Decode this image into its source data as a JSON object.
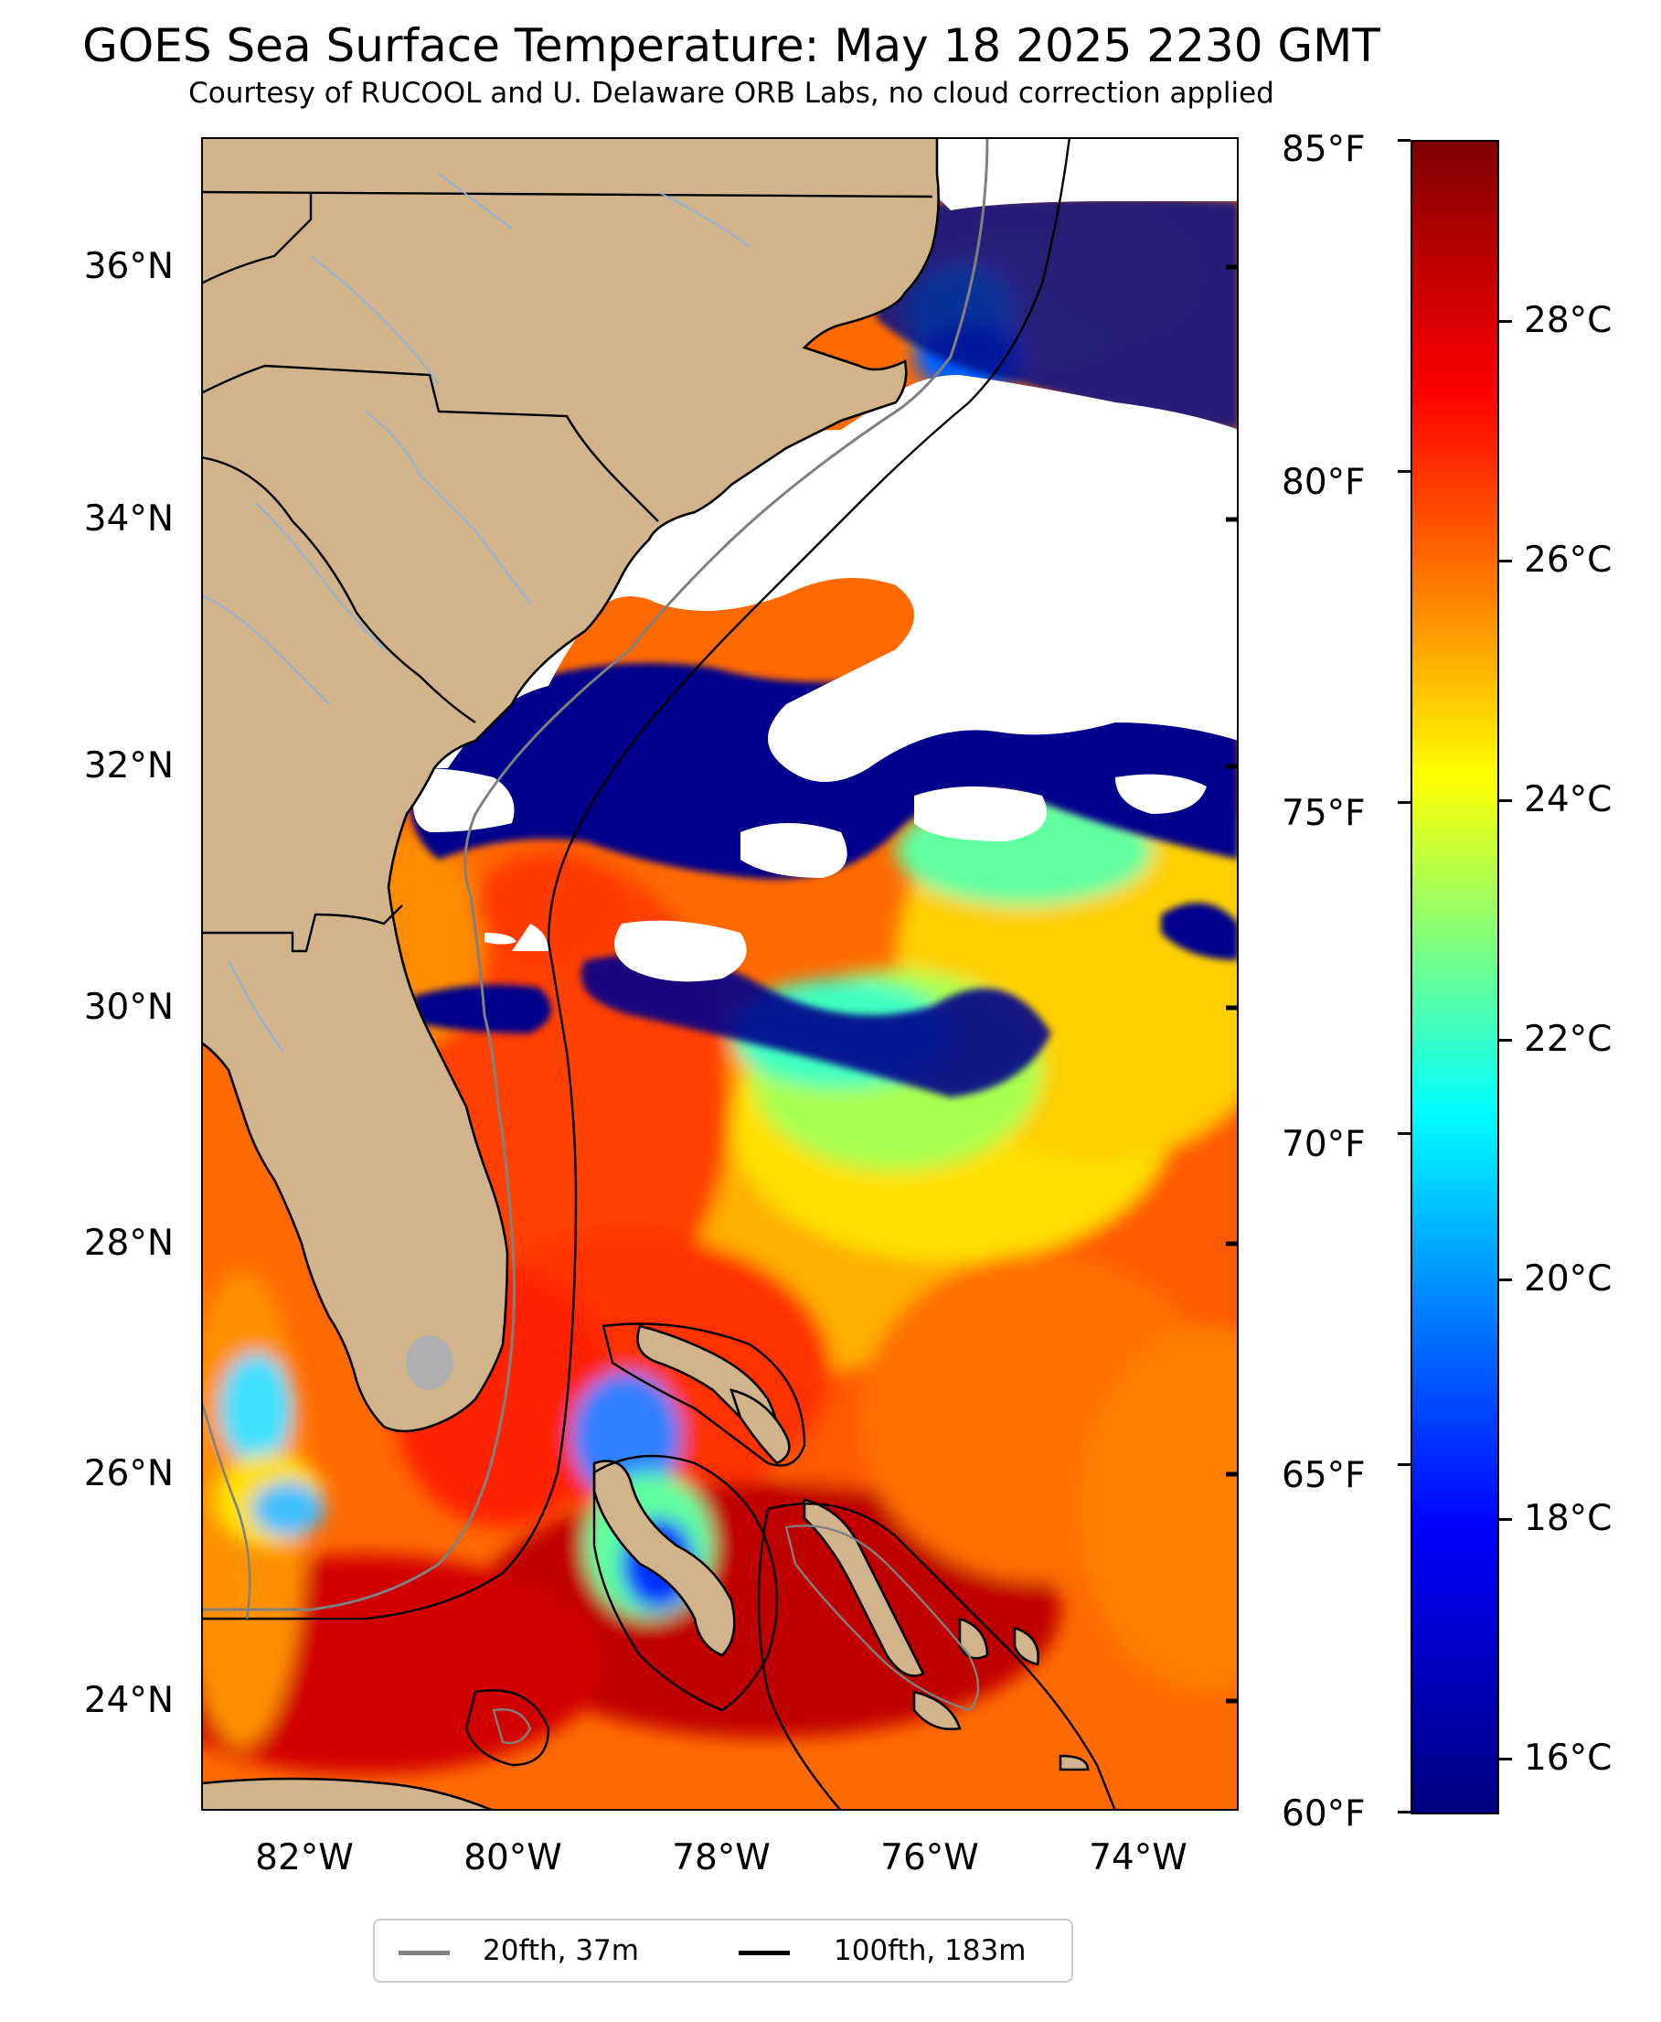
{
  "title": "GOES Sea Surface Temperature: May 18 2025 2230 GMT",
  "subtitle": "Courtesy of RUCOOL and U. Delaware ORB Labs, no cloud correction applied",
  "map": {
    "lat_ticks": [
      "36°N",
      "34°N",
      "32°N",
      "30°N",
      "28°N",
      "26°N",
      "24°N"
    ],
    "lon_ticks": [
      "82°W",
      "80°W",
      "78°W",
      "76°W",
      "74°W"
    ],
    "land_color": "#d2b48c",
    "cloud_color": "#ffffff",
    "no_data_color": "#b0b0b0"
  },
  "colorbar": {
    "fahrenheit_labels": [
      "85°F",
      "80°F",
      "75°F",
      "70°F",
      "65°F",
      "60°F"
    ],
    "celsius_labels": [
      "28°C",
      "26°C",
      "24°C",
      "22°C",
      "20°C",
      "18°C",
      "16°C"
    ],
    "colormap": "jet"
  },
  "legend": {
    "items": [
      {
        "label": "20fth, 37m",
        "color": "#808080"
      },
      {
        "label": "100fth, 183m",
        "color": "#000000"
      }
    ]
  }
}
